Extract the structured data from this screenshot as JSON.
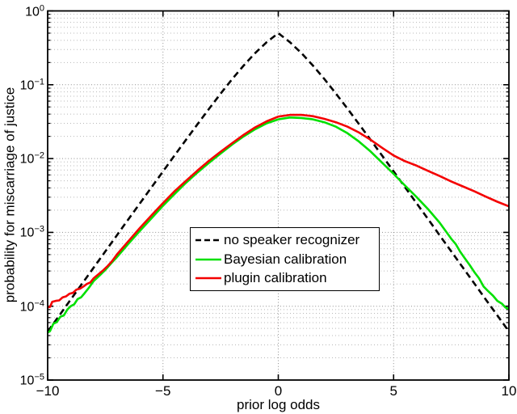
{
  "figure": {
    "background": "#ffffff",
    "style": "matlab-semilogy"
  },
  "chart_data": {
    "type": "line",
    "title": "",
    "xlabel": "prior log odds",
    "ylabel": "probability for miscarriage of justice",
    "x_scale": "linear",
    "y_scale": "log10",
    "xlim": [
      -10,
      10
    ],
    "ylim": [
      1e-05,
      1
    ],
    "grid": {
      "major": true,
      "minor": true,
      "style": "dotted"
    },
    "axis_color": "#000000",
    "grid_color_major": "#8f8f8f",
    "grid_color_minor": "#b8b8b8",
    "x_ticks": [
      {
        "v": -10,
        "label": "−10"
      },
      {
        "v": -5,
        "label": "−5"
      },
      {
        "v": 0,
        "label": "0"
      },
      {
        "v": 5,
        "label": "5"
      },
      {
        "v": 10,
        "label": "10"
      }
    ],
    "y_ticks": [
      {
        "exp": 0,
        "base": "10",
        "sup": "0"
      },
      {
        "exp": -1,
        "base": "10",
        "sup": "−1"
      },
      {
        "exp": -2,
        "base": "10",
        "sup": "−2"
      },
      {
        "exp": -3,
        "base": "10",
        "sup": "−3"
      },
      {
        "exp": -4,
        "base": "10",
        "sup": "−4"
      },
      {
        "exp": -5,
        "base": "10",
        "sup": "−5"
      }
    ],
    "legend": {
      "position": "center",
      "border_color": "#000000",
      "items": [
        {
          "label": "no speaker recognizer",
          "color": "#000000",
          "style": "dashed"
        },
        {
          "label": "Bayesian calibration",
          "color": "#00e000",
          "style": "solid"
        },
        {
          "label": "plugin calibration",
          "color": "#f40000",
          "style": "solid"
        }
      ]
    },
    "series": [
      {
        "name": "no speaker recognizer",
        "color": "#000000",
        "line_style": "dashed",
        "line_width": 2.6,
        "points": [
          [
            -10,
            4.54e-05
          ],
          [
            -9.5,
            7.47e-05
          ],
          [
            -9,
            0.000123
          ],
          [
            -8.5,
            0.000203
          ],
          [
            -8,
            0.000335
          ],
          [
            -7.5,
            0.000553
          ],
          [
            -7,
            0.000911
          ],
          [
            -6.5,
            0.001503
          ],
          [
            -6,
            0.002473
          ],
          [
            -5.5,
            0.00407
          ],
          [
            -5,
            0.00669
          ],
          [
            -4.5,
            0.01099
          ],
          [
            -4,
            0.01799
          ],
          [
            -3.5,
            0.02931
          ],
          [
            -3,
            0.04743
          ],
          [
            -2.5,
            0.07586
          ],
          [
            -2,
            0.1192
          ],
          [
            -1.5,
            0.1824
          ],
          [
            -1,
            0.2689
          ],
          [
            -0.5,
            0.3775
          ],
          [
            0,
            0.5
          ],
          [
            0.5,
            0.3775
          ],
          [
            1,
            0.2689
          ],
          [
            1.5,
            0.1824
          ],
          [
            2,
            0.1192
          ],
          [
            2.5,
            0.07586
          ],
          [
            3,
            0.04743
          ],
          [
            3.5,
            0.02931
          ],
          [
            4,
            0.01799
          ],
          [
            4.5,
            0.01099
          ],
          [
            5,
            0.00669
          ],
          [
            5.5,
            0.00407
          ],
          [
            6,
            0.002473
          ],
          [
            6.5,
            0.001503
          ],
          [
            7,
            0.000911
          ],
          [
            7.5,
            0.000553
          ],
          [
            8,
            0.000335
          ],
          [
            8.5,
            0.000203
          ],
          [
            9,
            0.000123
          ],
          [
            9.5,
            7.5e-05
          ],
          [
            10,
            4.54e-05
          ]
        ]
      },
      {
        "name": "Bayesian calibration",
        "color": "#00e000",
        "line_style": "solid",
        "line_width": 2.6,
        "points": [
          [
            -10,
            4.4e-05
          ],
          [
            -9.9,
            4.6e-05
          ],
          [
            -9.75,
            5.8e-05
          ],
          [
            -9.6,
            6.1e-05
          ],
          [
            -9.45,
            7.2e-05
          ],
          [
            -9.3,
            7.5e-05
          ],
          [
            -9.15,
            9e-05
          ],
          [
            -9,
            0.0001
          ],
          [
            -8.85,
            0.000106
          ],
          [
            -8.7,
            0.000125
          ],
          [
            -8.55,
            0.000132
          ],
          [
            -8.4,
            0.00015
          ],
          [
            -8.2,
            0.00018
          ],
          [
            -8,
            0.00022
          ],
          [
            -7.75,
            0.00026
          ],
          [
            -7.5,
            0.00031
          ],
          [
            -7.25,
            0.00038
          ],
          [
            -7,
            0.00046
          ],
          [
            -6.5,
            0.0007
          ],
          [
            -6,
            0.00105
          ],
          [
            -5.5,
            0.00155
          ],
          [
            -5,
            0.0023
          ],
          [
            -4.5,
            0.0033
          ],
          [
            -4,
            0.0047
          ],
          [
            -3.5,
            0.0065
          ],
          [
            -3,
            0.0088
          ],
          [
            -2.5,
            0.0117
          ],
          [
            -2,
            0.0155
          ],
          [
            -1.5,
            0.02
          ],
          [
            -1,
            0.025
          ],
          [
            -0.5,
            0.03
          ],
          [
            0,
            0.034
          ],
          [
            0.5,
            0.036
          ],
          [
            1,
            0.0355
          ],
          [
            1.5,
            0.034
          ],
          [
            2,
            0.031
          ],
          [
            2.5,
            0.027
          ],
          [
            3,
            0.022
          ],
          [
            3.5,
            0.017
          ],
          [
            4,
            0.0125
          ],
          [
            4.5,
            0.0088
          ],
          [
            5,
            0.0062
          ],
          [
            5.5,
            0.0043
          ],
          [
            6,
            0.003
          ],
          [
            6.5,
            0.00205
          ],
          [
            7,
            0.00135
          ],
          [
            7.5,
            0.00082
          ],
          [
            7.7,
            0.00069
          ],
          [
            7.9,
            0.00054
          ],
          [
            8.1,
            0.00044
          ],
          [
            8.3,
            0.00036
          ],
          [
            8.5,
            0.00029
          ],
          [
            8.7,
            0.00024
          ],
          [
            8.9,
            0.000185
          ],
          [
            9.1,
            0.00016
          ],
          [
            9.3,
            0.00014
          ],
          [
            9.5,
            0.000118
          ],
          [
            9.7,
            0.000108
          ],
          [
            9.85,
            9.6e-05
          ],
          [
            10,
            9.2e-05
          ]
        ]
      },
      {
        "name": "plugin calibration",
        "color": "#f40000",
        "line_style": "solid",
        "line_width": 2.6,
        "points": [
          [
            -10,
            9.6e-05
          ],
          [
            -9.9,
            9.8e-05
          ],
          [
            -9.8,
            0.000115
          ],
          [
            -9.65,
            0.000118
          ],
          [
            -9.5,
            0.00012
          ],
          [
            -9.35,
            0.000132
          ],
          [
            -9.2,
            0.000136
          ],
          [
            -9.05,
            0.000148
          ],
          [
            -8.9,
            0.000152
          ],
          [
            -8.75,
            0.000168
          ],
          [
            -8.6,
            0.000173
          ],
          [
            -8.45,
            0.000185
          ],
          [
            -8.3,
            0.0002
          ],
          [
            -8.15,
            0.00021
          ],
          [
            -8,
            0.00024
          ],
          [
            -7.8,
            0.00027
          ],
          [
            -7.6,
            0.000305
          ],
          [
            -7.4,
            0.00035
          ],
          [
            -7.2,
            0.00041
          ],
          [
            -7,
            0.0005
          ],
          [
            -6.5,
            0.00076
          ],
          [
            -6,
            0.00115
          ],
          [
            -5.5,
            0.0017
          ],
          [
            -5,
            0.0025
          ],
          [
            -4.5,
            0.0036
          ],
          [
            -4,
            0.005
          ],
          [
            -3.5,
            0.0069
          ],
          [
            -3,
            0.0094
          ],
          [
            -2.5,
            0.0124
          ],
          [
            -2,
            0.0162
          ],
          [
            -1.5,
            0.021
          ],
          [
            -1,
            0.0265
          ],
          [
            -0.5,
            0.032
          ],
          [
            0,
            0.037
          ],
          [
            0.5,
            0.039
          ],
          [
            1,
            0.039
          ],
          [
            1.5,
            0.0375
          ],
          [
            2,
            0.0345
          ],
          [
            2.5,
            0.031
          ],
          [
            3,
            0.027
          ],
          [
            3.5,
            0.0225
          ],
          [
            4,
            0.018
          ],
          [
            4.5,
            0.014
          ],
          [
            5,
            0.011
          ],
          [
            5.5,
            0.0092
          ],
          [
            6,
            0.008
          ],
          [
            6.5,
            0.0068
          ],
          [
            7,
            0.0058
          ],
          [
            7.5,
            0.0049
          ],
          [
            8,
            0.0042
          ],
          [
            8.5,
            0.0036
          ],
          [
            9,
            0.00305
          ],
          [
            9.5,
            0.0026
          ],
          [
            10,
            0.00225
          ]
        ]
      }
    ]
  }
}
